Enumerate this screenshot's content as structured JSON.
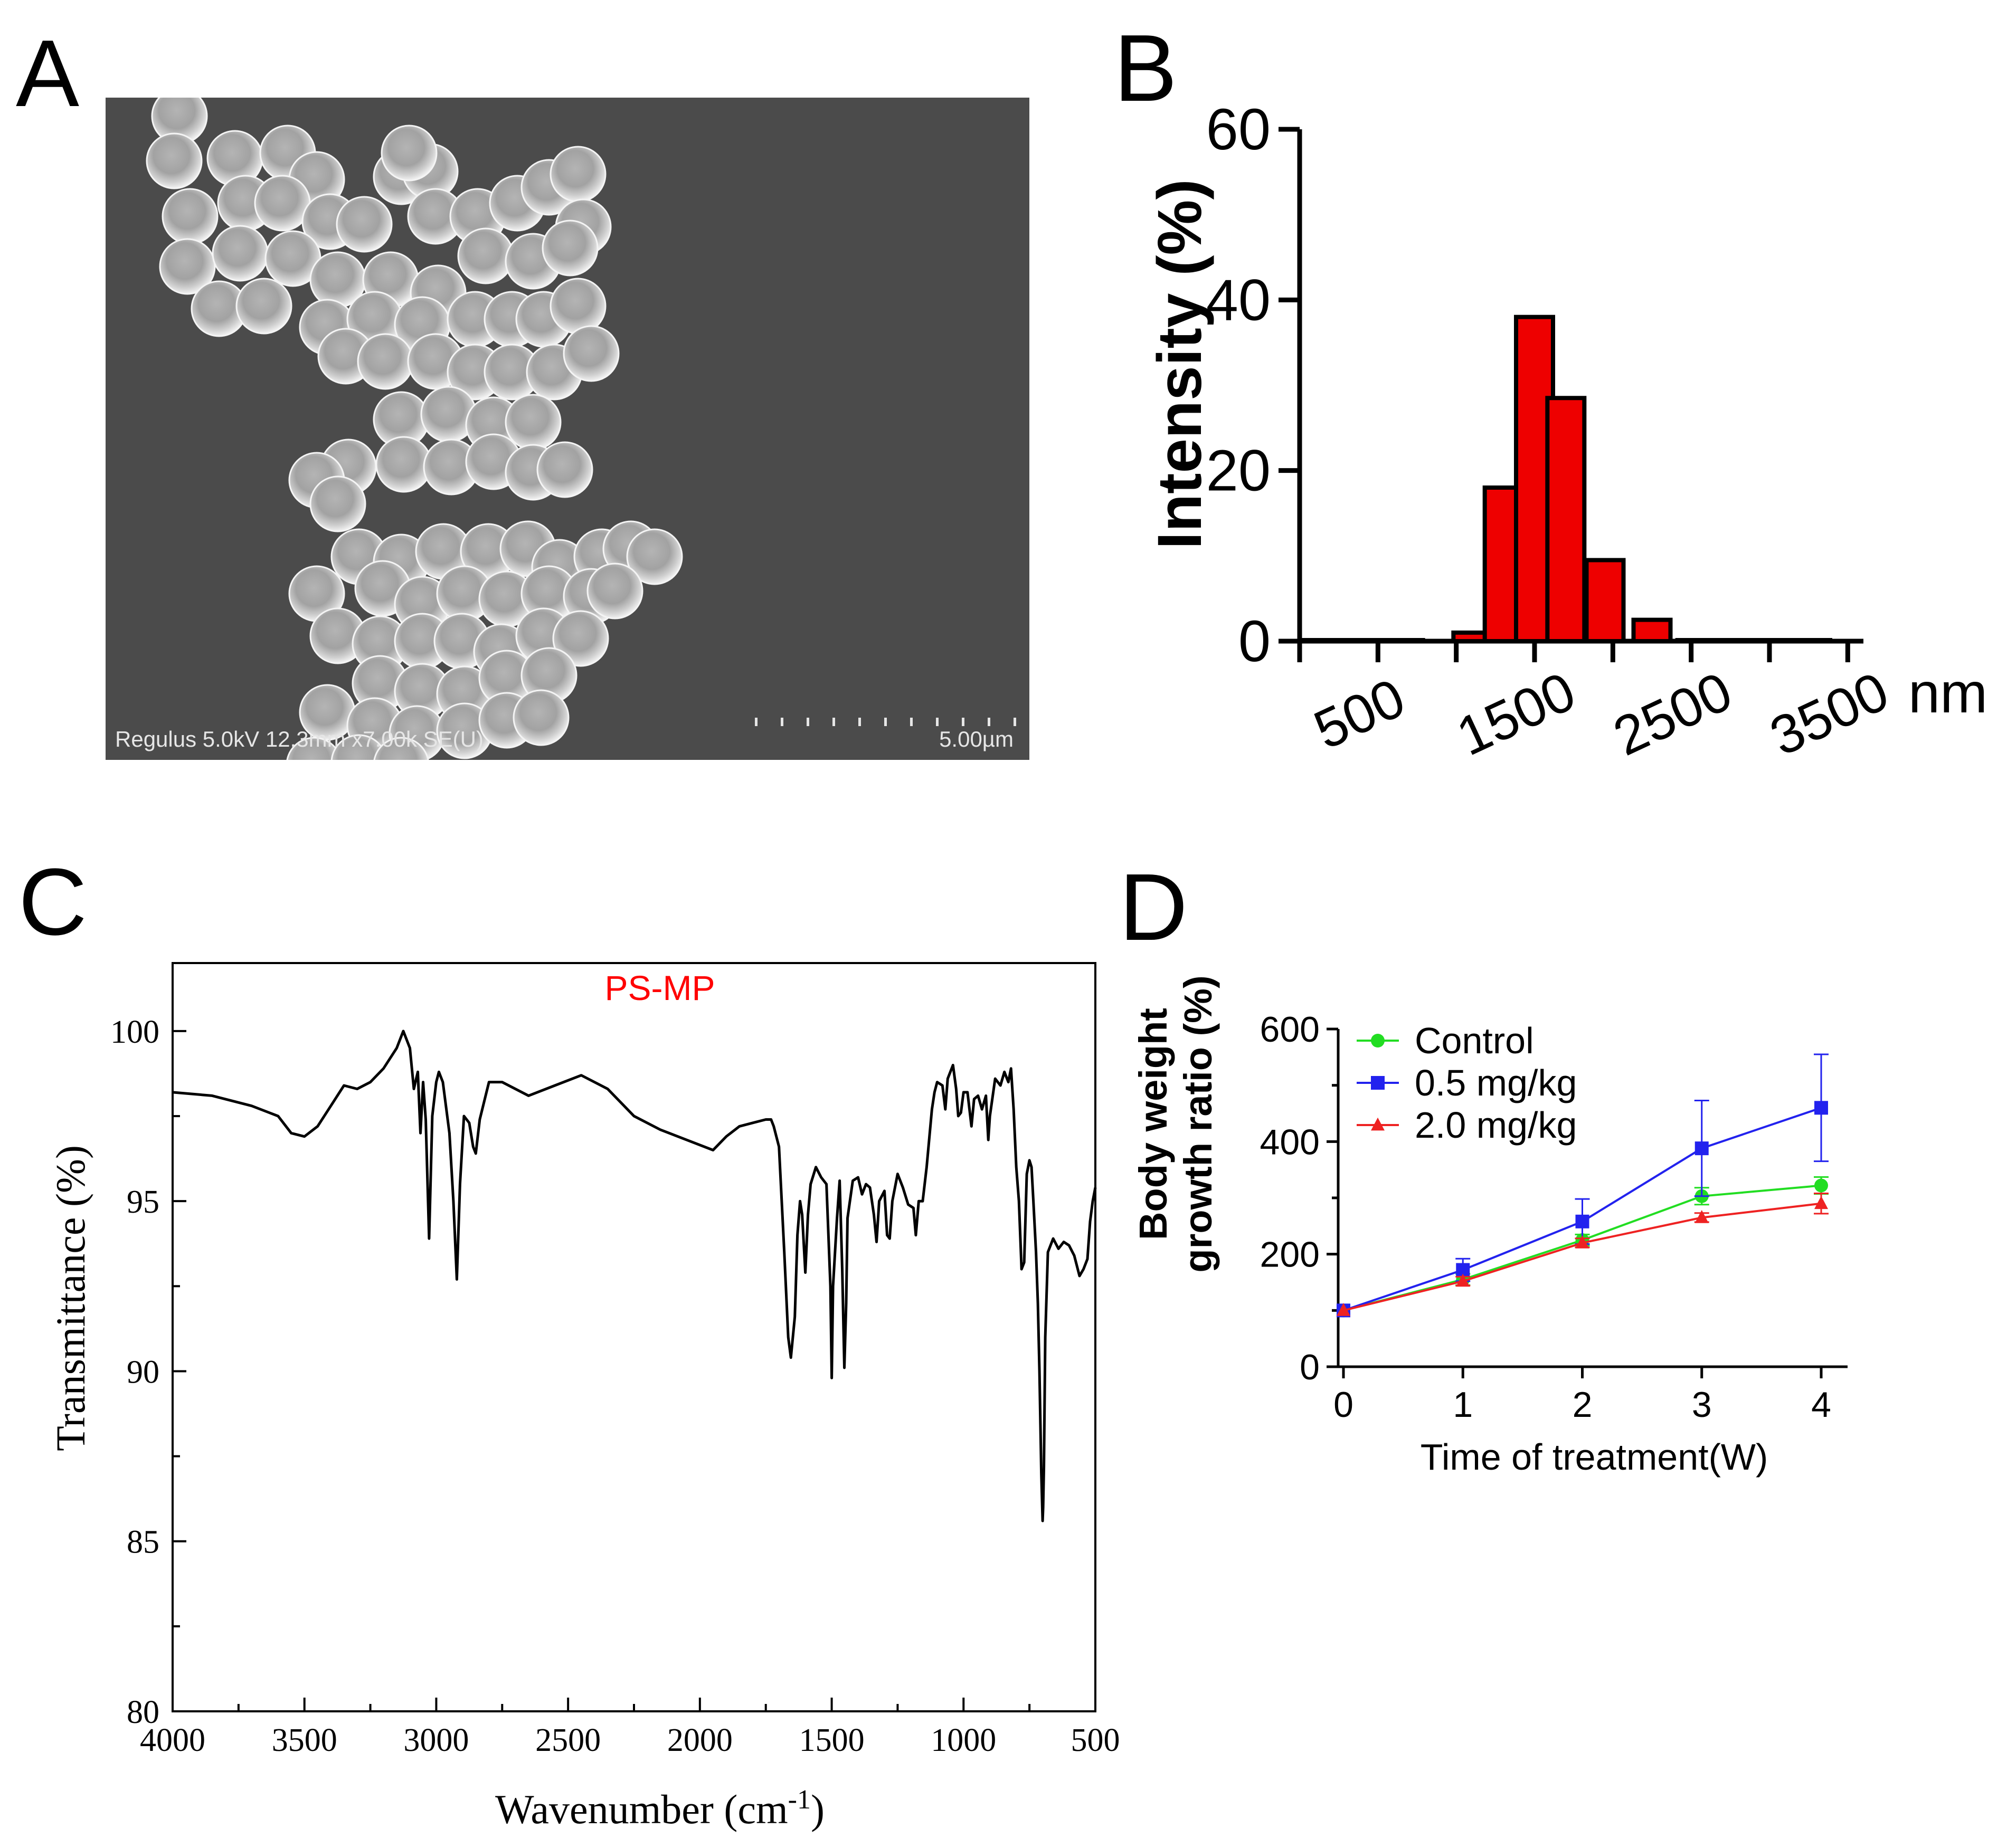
{
  "panels": {
    "a": {
      "letter": "A"
    },
    "b": {
      "letter": "B"
    },
    "c": {
      "letter": "C"
    },
    "d": {
      "letter": "D"
    }
  },
  "sem": {
    "caption": "Regulus 5.0kV 12.3mm x7.00k SE(U)",
    "scale_label": "5.00µm",
    "background_color": "#4a4a4a",
    "particle_color": "#cfcfcf"
  },
  "chart_data": [
    {
      "id": "B",
      "type": "bar",
      "title": "",
      "xlabel": "nm",
      "ylabel": "Intensity (%)",
      "ylim": [
        0,
        60
      ],
      "yticks": [
        0,
        20,
        40,
        60
      ],
      "xlim": [
        0,
        3600
      ],
      "xticks": [
        500,
        1500,
        2500,
        3500
      ],
      "bar_color": "#ee0000",
      "bars": [
        {
          "x": 1100,
          "value": 1
        },
        {
          "x": 1300,
          "value": 18
        },
        {
          "x": 1500,
          "value": 38
        },
        {
          "x": 1700,
          "value": 28.5
        },
        {
          "x": 1950,
          "value": 9.5
        },
        {
          "x": 2250,
          "value": 2.5
        }
      ]
    },
    {
      "id": "C",
      "type": "line",
      "title": "PS-MP",
      "title_color": "#ff0000",
      "xlabel": "Wavenumber (cm",
      "xlabel_sup": "-1",
      "xlabel_close": ")",
      "ylabel": "Transmittance (%)",
      "xlim": [
        4000,
        500
      ],
      "ylim": [
        80,
        102
      ],
      "xticks": [
        4000,
        3500,
        3000,
        2500,
        2000,
        1500,
        1000,
        500
      ],
      "yticks": [
        80,
        85,
        90,
        95,
        100
      ],
      "series": [
        {
          "name": "PS-MP",
          "color": "#000000",
          "points": [
            [
              4000,
              98.2
            ],
            [
              3850,
              98.1
            ],
            [
              3700,
              97.8
            ],
            [
              3600,
              97.5
            ],
            [
              3550,
              97.0
            ],
            [
              3500,
              96.9
            ],
            [
              3450,
              97.2
            ],
            [
              3400,
              97.8
            ],
            [
              3350,
              98.4
            ],
            [
              3300,
              98.3
            ],
            [
              3250,
              98.5
            ],
            [
              3200,
              98.9
            ],
            [
              3150,
              99.5
            ],
            [
              3125,
              100.0
            ],
            [
              3100,
              99.5
            ],
            [
              3085,
              98.3
            ],
            [
              3070,
              98.8
            ],
            [
              3060,
              97.0
            ],
            [
              3050,
              98.5
            ],
            [
              3040,
              97.4
            ],
            [
              3027,
              93.9
            ],
            [
              3015,
              97.5
            ],
            [
              3000,
              98.5
            ],
            [
              2990,
              98.8
            ],
            [
              2975,
              98.5
            ],
            [
              2950,
              97.0
            ],
            [
              2935,
              95.0
            ],
            [
              2922,
              92.7
            ],
            [
              2910,
              95.5
            ],
            [
              2895,
              97.5
            ],
            [
              2875,
              97.3
            ],
            [
              2860,
              96.6
            ],
            [
              2850,
              96.4
            ],
            [
              2835,
              97.4
            ],
            [
              2800,
              98.5
            ],
            [
              2750,
              98.5
            ],
            [
              2650,
              98.1
            ],
            [
              2550,
              98.4
            ],
            [
              2450,
              98.7
            ],
            [
              2350,
              98.3
            ],
            [
              2250,
              97.5
            ],
            [
              2150,
              97.1
            ],
            [
              2050,
              96.8
            ],
            [
              1950,
              96.5
            ],
            [
              1900,
              96.9
            ],
            [
              1850,
              97.2
            ],
            [
              1800,
              97.3
            ],
            [
              1750,
              97.4
            ],
            [
              1730,
              97.4
            ],
            [
              1720,
              97.2
            ],
            [
              1700,
              96.6
            ],
            [
              1680,
              93.5
            ],
            [
              1665,
              91.0
            ],
            [
              1655,
              90.4
            ],
            [
              1640,
              91.6
            ],
            [
              1630,
              94.0
            ],
            [
              1620,
              95.0
            ],
            [
              1612,
              94.6
            ],
            [
              1600,
              92.9
            ],
            [
              1590,
              94.6
            ],
            [
              1580,
              95.5
            ],
            [
              1560,
              96.0
            ],
            [
              1540,
              95.7
            ],
            [
              1520,
              95.5
            ],
            [
              1505,
              92.5
            ],
            [
              1500,
              89.8
            ],
            [
              1495,
              92.5
            ],
            [
              1480,
              94.5
            ],
            [
              1470,
              95.6
            ],
            [
              1460,
              93.0
            ],
            [
              1452,
              90.1
            ],
            [
              1445,
              92.0
            ],
            [
              1440,
              94.5
            ],
            [
              1420,
              95.6
            ],
            [
              1400,
              95.7
            ],
            [
              1385,
              95.2
            ],
            [
              1370,
              95.5
            ],
            [
              1355,
              95.4
            ],
            [
              1340,
              94.6
            ],
            [
              1330,
              93.8
            ],
            [
              1320,
              95.0
            ],
            [
              1300,
              95.3
            ],
            [
              1290,
              94.0
            ],
            [
              1280,
              93.9
            ],
            [
              1270,
              95.0
            ],
            [
              1250,
              95.8
            ],
            [
              1230,
              95.4
            ],
            [
              1210,
              94.9
            ],
            [
              1190,
              94.8
            ],
            [
              1181,
              94.0
            ],
            [
              1170,
              95.0
            ],
            [
              1155,
              95.0
            ],
            [
              1140,
              96.0
            ],
            [
              1120,
              97.7
            ],
            [
              1110,
              98.2
            ],
            [
              1100,
              98.5
            ],
            [
              1080,
              98.4
            ],
            [
              1069,
              97.7
            ],
            [
              1060,
              98.6
            ],
            [
              1040,
              99.0
            ],
            [
              1028,
              98.3
            ],
            [
              1020,
              97.5
            ],
            [
              1010,
              97.6
            ],
            [
              1000,
              98.2
            ],
            [
              985,
              98.2
            ],
            [
              970,
              97.2
            ],
            [
              960,
              98.0
            ],
            [
              945,
              98.1
            ],
            [
              930,
              97.7
            ],
            [
              915,
              98.1
            ],
            [
              906,
              96.8
            ],
            [
              900,
              97.5
            ],
            [
              880,
              98.6
            ],
            [
              860,
              98.4
            ],
            [
              845,
              98.8
            ],
            [
              830,
              98.5
            ],
            [
              820,
              98.9
            ],
            [
              810,
              97.7
            ],
            [
              800,
              96.0
            ],
            [
              790,
              95.0
            ],
            [
              780,
              93.0
            ],
            [
              770,
              93.2
            ],
            [
              760,
              95.8
            ],
            [
              750,
              96.2
            ],
            [
              742,
              96.0
            ],
            [
              735,
              95.0
            ],
            [
              725,
              93.5
            ],
            [
              718,
              92.0
            ],
            [
              712,
              90.0
            ],
            [
              705,
              87.0
            ],
            [
              700,
              85.6
            ],
            [
              698,
              86.0
            ],
            [
              695,
              87.2
            ],
            [
              690,
              91.0
            ],
            [
              680,
              93.5
            ],
            [
              660,
              93.9
            ],
            [
              640,
              93.6
            ],
            [
              620,
              93.8
            ],
            [
              600,
              93.7
            ],
            [
              580,
              93.4
            ],
            [
              560,
              92.8
            ],
            [
              545,
              93.0
            ],
            [
              530,
              93.3
            ],
            [
              520,
              94.4
            ],
            [
              510,
              95.0
            ],
            [
              500,
              95.4
            ]
          ]
        }
      ]
    },
    {
      "id": "D",
      "type": "line",
      "title": "",
      "xlabel": "Time of treatment(W)",
      "ylabel": [
        "Body weight",
        "growth ratio (%)"
      ],
      "xlim": [
        0,
        4.2
      ],
      "ylim": [
        0,
        600
      ],
      "xticks": [
        0,
        1,
        2,
        3,
        4
      ],
      "yticks": [
        0,
        200,
        400,
        600
      ],
      "legend_position": "top-left",
      "series": [
        {
          "name": "Control",
          "marker": "circle",
          "color": "#22dd22",
          "x": [
            0,
            1,
            2,
            3,
            4
          ],
          "values": [
            100,
            155,
            225,
            303,
            322
          ],
          "errors": [
            0,
            10,
            10,
            15,
            15
          ]
        },
        {
          "name": "0.5 mg/kg",
          "marker": "square",
          "color": "#2222ee",
          "x": [
            0,
            1,
            2,
            3,
            4
          ],
          "values": [
            100,
            172,
            258,
            388,
            460
          ],
          "errors": [
            0,
            20,
            40,
            85,
            95
          ]
        },
        {
          "name": "2.0 mg/kg",
          "marker": "triangle",
          "color": "#ee2222",
          "x": [
            0,
            1,
            2,
            3,
            4
          ],
          "values": [
            100,
            152,
            220,
            265,
            290
          ],
          "errors": [
            0,
            8,
            8,
            8,
            18
          ]
        }
      ]
    }
  ]
}
